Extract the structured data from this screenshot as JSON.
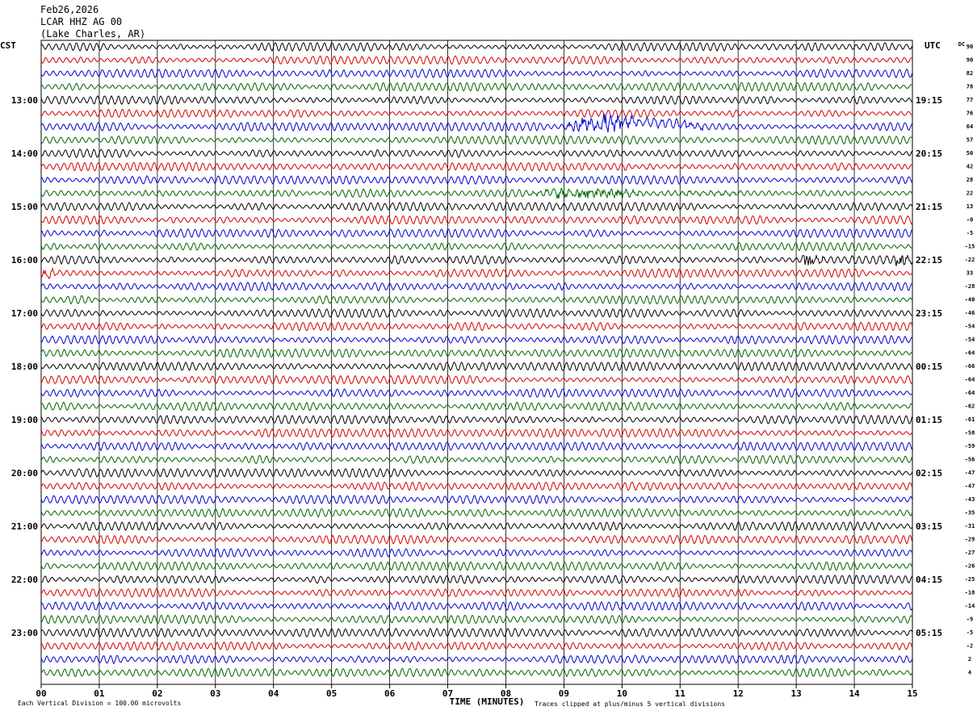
{
  "header": {
    "date": "Feb26,2026",
    "station": "LCAR HHZ AG 00",
    "location": "(Lake Charles, AR)"
  },
  "left_axis_label": "CST",
  "right_axis_label": "UTC",
  "dc_label": "DC",
  "footer": {
    "division_note": "Each Vertical Division =  100.00 microvolts",
    "xlabel": "TIME (MINUTES)",
    "clip_note": "Traces clipped at plus/minus 5 vertical divisions"
  },
  "colors": {
    "trace_cycle": [
      "#000000",
      "#d40000",
      "#0000d0",
      "#006400"
    ],
    "grid": "#000000"
  },
  "chart_data": {
    "type": "line",
    "x": {
      "label": "TIME (MINUTES)",
      "range": [
        0,
        15
      ],
      "ticks": [
        "00",
        "01",
        "02",
        "03",
        "04",
        "05",
        "06",
        "07",
        "08",
        "09",
        "10",
        "11",
        "12",
        "13",
        "14",
        "15"
      ]
    },
    "rows_per_hour": 4,
    "row_minutes": 15,
    "left_hour_labels": [
      "13:00",
      "14:00",
      "15:00",
      "16:00",
      "17:00",
      "18:00",
      "19:00",
      "20:00",
      "21:00",
      "22:00",
      "23:00"
    ],
    "right_hour_labels": [
      "19:15",
      "20:15",
      "21:15",
      "22:15",
      "23:15",
      "00:15",
      "01:15",
      "02:15",
      "03:15",
      "04:15",
      "05:15"
    ],
    "dc_values": [
      "90",
      "90",
      "82",
      "78",
      "77",
      "76",
      "64",
      "57",
      "50",
      "42",
      "28",
      "22",
      "13",
      "-0",
      "-5",
      "-15",
      "-22",
      "33",
      "-28",
      "-40",
      "-46",
      "-54",
      "-54",
      "-64",
      "-66",
      "-64",
      "-64",
      "-62",
      "-61",
      "-58",
      "-59",
      "-56",
      "-47",
      "-47",
      "-43",
      "-35",
      "-31",
      "-29",
      "-27",
      "-26",
      "-25",
      "-18",
      "-14",
      "-9",
      "-5",
      "-2",
      "2",
      "4"
    ],
    "events": [
      {
        "row": 6,
        "start_min": 9.0,
        "end_min": 11.4,
        "amplitude": "high"
      },
      {
        "row": 11,
        "start_min": 8.4,
        "end_min": 12.0,
        "amplitude": "medium"
      },
      {
        "row": 16,
        "start_min": 13.1,
        "end_min": 13.5,
        "amplitude": "high"
      },
      {
        "row": 16,
        "start_min": 14.7,
        "end_min": 15.0,
        "amplitude": "high"
      },
      {
        "row": 17,
        "start_min": 0.0,
        "end_min": 0.4,
        "amplitude": "medium"
      }
    ]
  }
}
